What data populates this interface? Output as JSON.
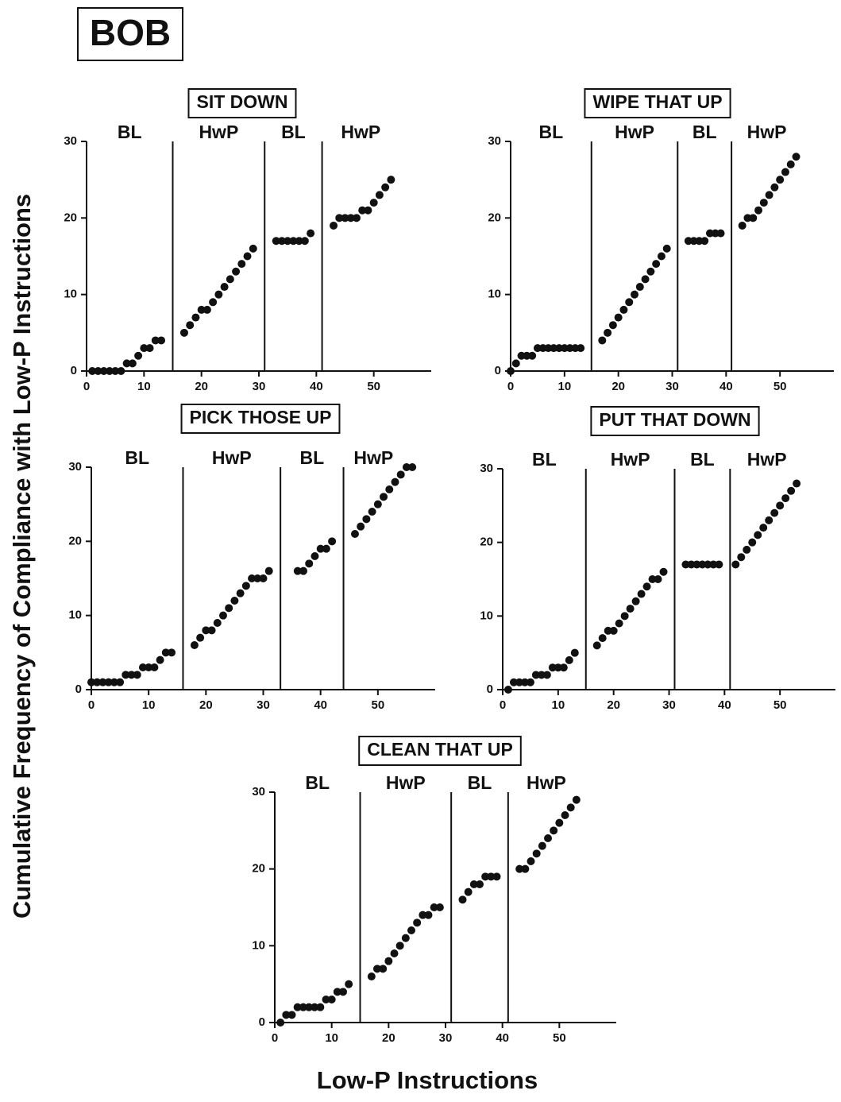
{
  "title": "BOB",
  "ylabel": "Cumulative Frequency of Compliance with Low-P Instructions",
  "xlabel": "Low-P Instructions",
  "chart_data": [
    {
      "type": "scatter",
      "title": "SIT DOWN",
      "phases": [
        "BL",
        "HwP",
        "BL",
        "HwP"
      ],
      "phase_lines": [
        15,
        31,
        41
      ],
      "color": "#111111",
      "x": [
        1,
        2,
        3,
        4,
        5,
        6,
        7,
        8,
        9,
        10,
        11,
        12,
        13,
        17,
        18,
        19,
        20,
        21,
        22,
        23,
        24,
        25,
        26,
        27,
        28,
        29,
        33,
        34,
        35,
        36,
        37,
        38,
        39,
        43,
        44,
        45,
        46,
        47,
        48,
        49,
        50,
        51,
        52,
        53
      ],
      "values": [
        0,
        0,
        0,
        0,
        0,
        0,
        1,
        1,
        2,
        3,
        3,
        4,
        4,
        5,
        6,
        7,
        8,
        8,
        9,
        10,
        11,
        12,
        13,
        14,
        15,
        16,
        17,
        17,
        17,
        17,
        17,
        17,
        18,
        19,
        20,
        20,
        20,
        20,
        21,
        21,
        22,
        23,
        24,
        25
      ],
      "xlim": [
        0,
        60
      ],
      "ylim": [
        0,
        30
      ],
      "xticks": [
        0,
        10,
        20,
        30,
        40,
        50
      ],
      "yticks": [
        0,
        10,
        20,
        30
      ]
    },
    {
      "type": "scatter",
      "title": "WIPE THAT UP",
      "phases": [
        "BL",
        "HwP",
        "BL",
        "HwP"
      ],
      "phase_lines": [
        15,
        31,
        41
      ],
      "color": "#111111",
      "x": [
        0,
        1,
        2,
        3,
        4,
        5,
        6,
        7,
        8,
        9,
        10,
        11,
        12,
        13,
        17,
        18,
        19,
        20,
        21,
        22,
        23,
        24,
        25,
        26,
        27,
        28,
        29,
        33,
        34,
        35,
        36,
        37,
        38,
        39,
        43,
        44,
        45,
        46,
        47,
        48,
        49,
        50,
        51,
        52,
        53
      ],
      "values": [
        0,
        1,
        2,
        2,
        2,
        3,
        3,
        3,
        3,
        3,
        3,
        3,
        3,
        3,
        4,
        5,
        6,
        7,
        8,
        9,
        10,
        11,
        12,
        13,
        14,
        15,
        16,
        17,
        17,
        17,
        17,
        18,
        18,
        18,
        19,
        20,
        20,
        21,
        22,
        23,
        24,
        25,
        26,
        27,
        28
      ],
      "xlim": [
        0,
        60
      ],
      "ylim": [
        0,
        30
      ],
      "xticks": [
        0,
        10,
        20,
        30,
        40,
        50
      ],
      "yticks": [
        0,
        10,
        20,
        30
      ]
    },
    {
      "type": "scatter",
      "title": "PICK THOSE UP",
      "phases": [
        "BL",
        "HwP",
        "BL",
        "HwP"
      ],
      "phase_lines": [
        16,
        33,
        44
      ],
      "color": "#111111",
      "x": [
        0,
        1,
        2,
        3,
        4,
        5,
        6,
        7,
        8,
        9,
        10,
        11,
        12,
        13,
        14,
        18,
        19,
        20,
        21,
        22,
        23,
        24,
        25,
        26,
        27,
        28,
        29,
        30,
        31,
        36,
        37,
        38,
        39,
        40,
        41,
        42,
        46,
        47,
        48,
        49,
        50,
        51,
        52,
        53,
        54,
        55,
        56
      ],
      "values": [
        1,
        1,
        1,
        1,
        1,
        1,
        2,
        2,
        2,
        3,
        3,
        3,
        4,
        5,
        5,
        6,
        7,
        8,
        8,
        9,
        10,
        11,
        12,
        13,
        14,
        15,
        15,
        15,
        16,
        16,
        16,
        17,
        18,
        19,
        19,
        20,
        21,
        22,
        23,
        24,
        25,
        26,
        27,
        28,
        29,
        30,
        30
      ],
      "xlim": [
        0,
        60
      ],
      "ylim": [
        0,
        30
      ],
      "xticks": [
        0,
        10,
        20,
        30,
        40,
        50
      ],
      "yticks": [
        0,
        10,
        20,
        30
      ]
    },
    {
      "type": "scatter",
      "title": "PUT THAT DOWN",
      "phases": [
        "BL",
        "HwP",
        "BL",
        "HwP"
      ],
      "phase_lines": [
        15,
        31,
        41
      ],
      "color": "#111111",
      "x": [
        1,
        2,
        3,
        4,
        5,
        6,
        7,
        8,
        9,
        10,
        11,
        12,
        13,
        17,
        18,
        19,
        20,
        21,
        22,
        23,
        24,
        25,
        26,
        27,
        28,
        29,
        33,
        34,
        35,
        36,
        37,
        38,
        39,
        42,
        43,
        44,
        45,
        46,
        47,
        48,
        49,
        50,
        51,
        52,
        53
      ],
      "values": [
        0,
        1,
        1,
        1,
        1,
        2,
        2,
        2,
        3,
        3,
        3,
        4,
        5,
        6,
        7,
        8,
        8,
        9,
        10,
        11,
        12,
        13,
        14,
        15,
        15,
        16,
        17,
        17,
        17,
        17,
        17,
        17,
        17,
        17,
        18,
        19,
        20,
        21,
        22,
        23,
        24,
        25,
        26,
        27,
        28
      ],
      "xlim": [
        0,
        60
      ],
      "ylim": [
        0,
        30
      ],
      "xticks": [
        0,
        10,
        20,
        30,
        40,
        50
      ],
      "yticks": [
        0,
        10,
        20,
        30
      ]
    },
    {
      "type": "scatter",
      "title": "CLEAN THAT UP",
      "phases": [
        "BL",
        "HwP",
        "BL",
        "HwP"
      ],
      "phase_lines": [
        15,
        31,
        41
      ],
      "color": "#111111",
      "x": [
        1,
        2,
        3,
        4,
        5,
        6,
        7,
        8,
        9,
        10,
        11,
        12,
        13,
        17,
        18,
        19,
        20,
        21,
        22,
        23,
        24,
        25,
        26,
        27,
        28,
        29,
        33,
        34,
        35,
        36,
        37,
        38,
        39,
        43,
        44,
        45,
        46,
        47,
        48,
        49,
        50,
        51,
        52,
        53
      ],
      "values": [
        0,
        1,
        1,
        2,
        2,
        2,
        2,
        2,
        3,
        3,
        4,
        4,
        5,
        6,
        7,
        7,
        8,
        9,
        10,
        11,
        12,
        13,
        14,
        14,
        15,
        15,
        16,
        17,
        18,
        18,
        19,
        19,
        19,
        20,
        20,
        21,
        22,
        23,
        24,
        25,
        26,
        27,
        28,
        29
      ],
      "xlim": [
        0,
        60
      ],
      "ylim": [
        0,
        30
      ],
      "xticks": [
        0,
        10,
        20,
        30,
        40,
        50
      ],
      "yticks": [
        0,
        10,
        20,
        30
      ]
    }
  ]
}
